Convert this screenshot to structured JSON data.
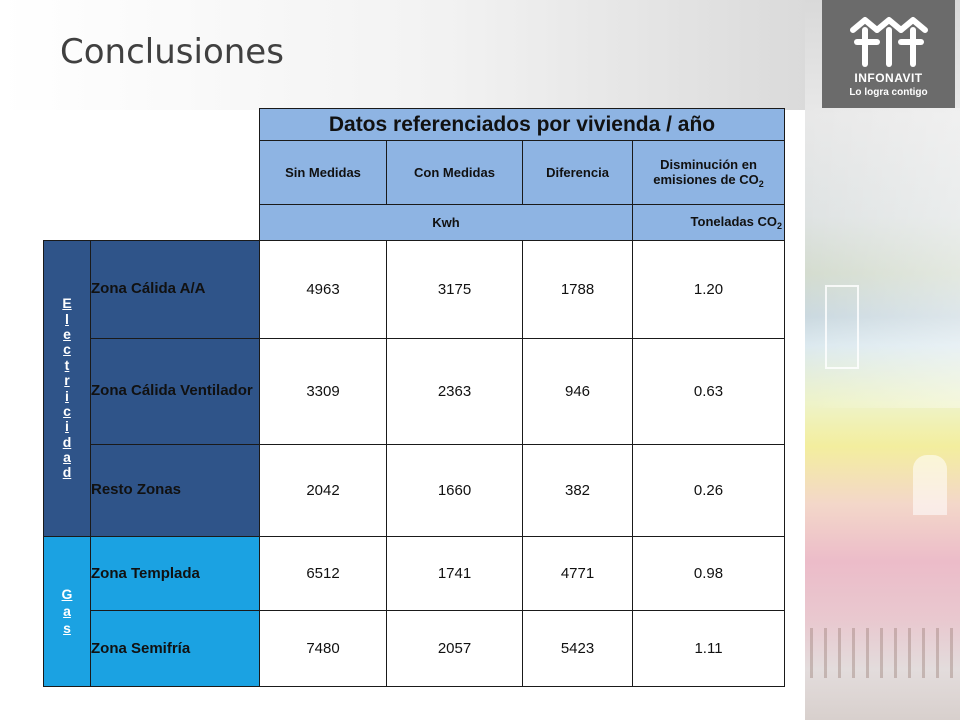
{
  "slide": {
    "title": "Conclusiones"
  },
  "logo": {
    "name": "INFONAVIT",
    "slogan": "Lo logra contigo"
  },
  "table": {
    "heading": "Datos referenciados por vivienda / año",
    "columns": {
      "sin_medidas": "Sin Medidas",
      "con_medidas": "Con Medidas",
      "diferencia": "Diferencia",
      "disminucion": "Disminución en emisiones de CO",
      "disminucion_sub": "2"
    },
    "units": {
      "kwh": "Kwh",
      "toneladas": "Toneladas CO",
      "toneladas_sub": "2"
    },
    "groups": [
      {
        "label": "Electricidad",
        "letters": [
          "E",
          "l",
          "e",
          "c",
          "t",
          "r",
          "i",
          "c",
          "i",
          "d",
          "a",
          "d"
        ],
        "rows": [
          {
            "zone": "Zona Cálida A/A",
            "sin": "4963",
            "con": "3175",
            "dif": "1788",
            "co2": "1.20"
          },
          {
            "zone": "Zona Cálida Ventilador",
            "sin": "3309",
            "con": "2363",
            "dif": "946",
            "co2": "0.63"
          },
          {
            "zone": "Resto Zonas",
            "sin": "2042",
            "con": "1660",
            "dif": "382",
            "co2": "0.26"
          }
        ]
      },
      {
        "label": "Gas",
        "letters": [
          "G",
          "a",
          "s"
        ],
        "rows": [
          {
            "zone": "Zona Templada",
            "sin": "6512",
            "con": "1741",
            "dif": "4771",
            "co2": "0.98"
          },
          {
            "zone": "Zona Semifría",
            "sin": "7480",
            "con": "2057",
            "dif": "5423",
            "co2": "1.11"
          }
        ]
      }
    ]
  },
  "colors": {
    "header_blue": "#8eb4e3",
    "electricity_blue": "#2f5489",
    "gas_blue": "#1ba2e2",
    "logo_gray": "#6b6b6b"
  }
}
